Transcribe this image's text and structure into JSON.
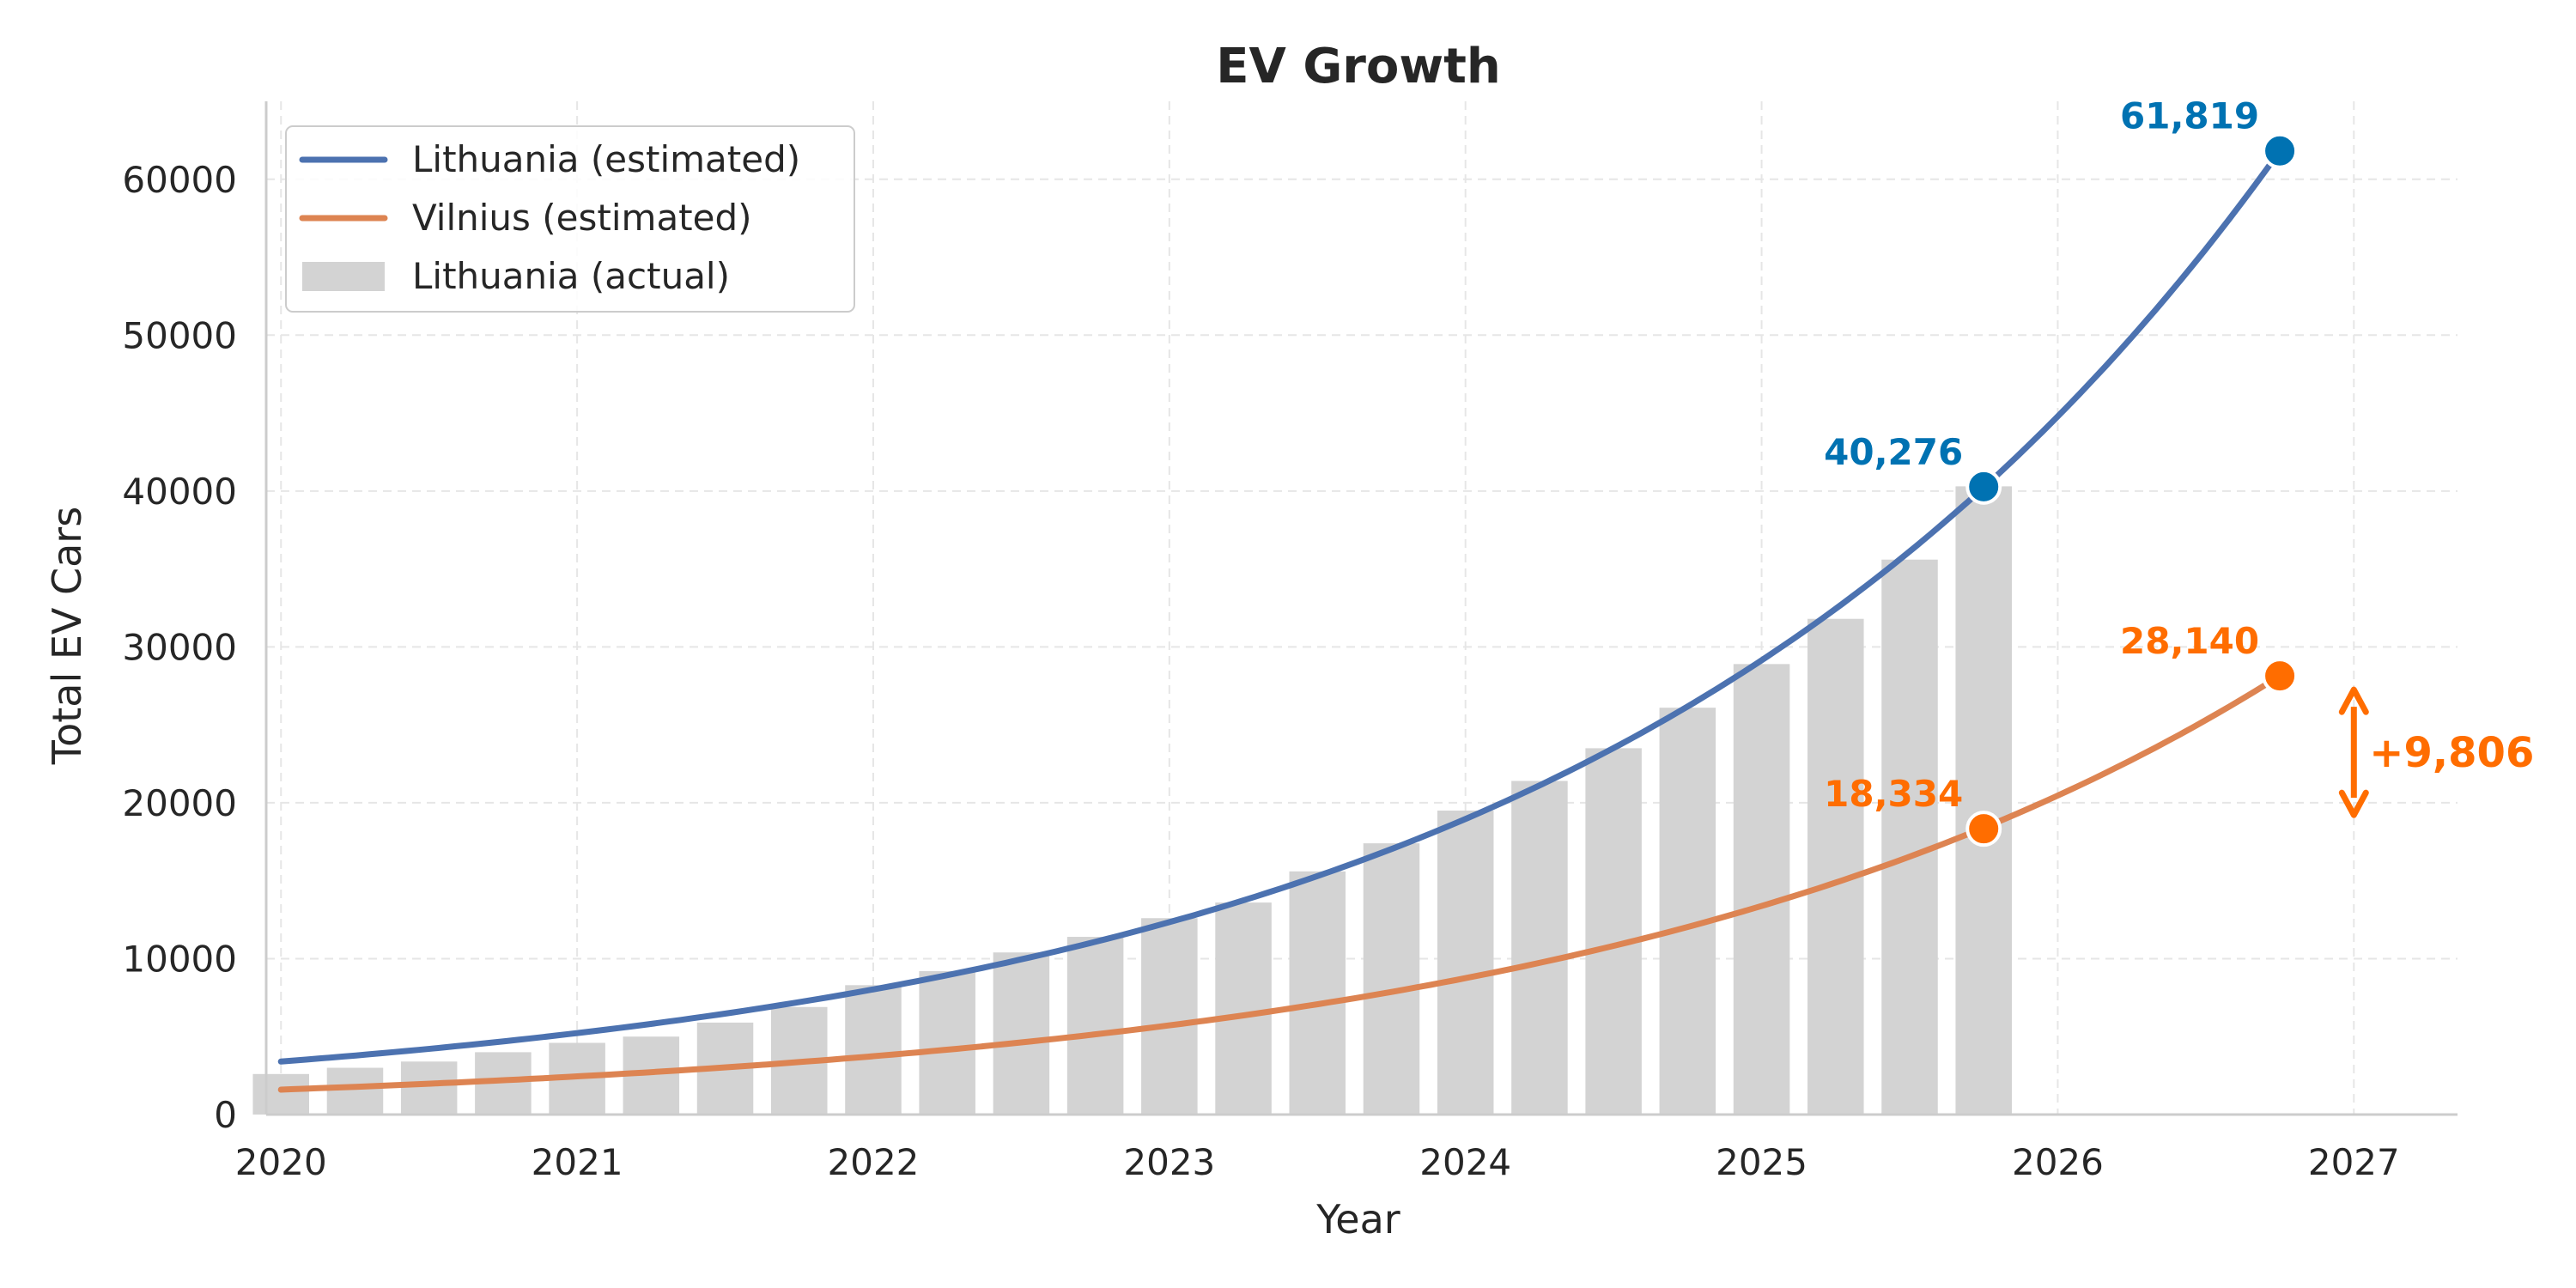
{
  "chart_data": {
    "type": "bar+line",
    "title": "EV Growth",
    "xlabel": "Year",
    "ylabel": "Total EV Cars",
    "xlim": [
      2019.95,
      2027.35
    ],
    "ylim": [
      0,
      65000
    ],
    "x_ticks": [
      2020,
      2021,
      2022,
      2023,
      2024,
      2025,
      2026,
      2027
    ],
    "y_ticks": [
      0,
      10000,
      20000,
      30000,
      40000,
      50000,
      60000
    ],
    "grid": true,
    "legend_position": "top-left",
    "bars": {
      "name": "Lithuania (actual)",
      "color": "#d3d3d3",
      "x": [
        2020.0,
        2020.25,
        2020.5,
        2020.75,
        2021.0,
        2021.25,
        2021.5,
        2021.75,
        2022.0,
        2022.25,
        2022.5,
        2022.75,
        2023.0,
        2023.25,
        2023.5,
        2023.75,
        2024.0,
        2024.25,
        2024.5,
        2024.75,
        2025.0,
        2025.25,
        2025.5,
        2025.75
      ],
      "values": [
        2600,
        3000,
        3400,
        4000,
        4600,
        5000,
        5900,
        6900,
        8300,
        9200,
        10400,
        11400,
        12600,
        13600,
        15600,
        17400,
        19500,
        21400,
        23500,
        26100,
        28900,
        31800,
        35600,
        40300
      ]
    },
    "series": [
      {
        "name": "Lithuania (estimated)",
        "color": "#4c72b0",
        "start": [
          2020.0,
          3400
        ],
        "end": [
          2026.75,
          61819
        ]
      },
      {
        "name": "Vilnius (estimated)",
        "color": "#dd8452",
        "start": [
          2020.0,
          1600
        ],
        "end": [
          2026.75,
          28140
        ]
      }
    ],
    "annotations": [
      {
        "x": 2025.75,
        "y": 40276,
        "text": "40,276",
        "color": "#0072b2"
      },
      {
        "x": 2026.75,
        "y": 61819,
        "text": "61,819",
        "color": "#0072b2"
      },
      {
        "x": 2025.75,
        "y": 18334,
        "text": "18,334",
        "color": "#ff6d00"
      },
      {
        "x": 2026.75,
        "y": 28140,
        "text": "28,140",
        "color": "#ff6d00"
      }
    ],
    "difference": {
      "x": 2027.0,
      "y_from": 18334,
      "y_to": 28140,
      "text": "+9,806",
      "color": "#ff6d00"
    }
  }
}
